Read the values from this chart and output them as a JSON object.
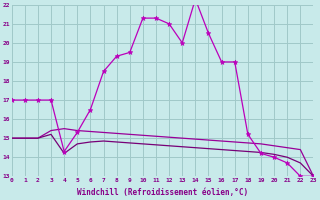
{
  "line1_x": [
    0,
    1,
    2,
    3,
    4,
    5,
    6,
    7,
    8,
    9,
    10,
    11,
    12,
    13,
    14,
    15,
    16,
    17,
    18,
    19,
    20,
    21,
    22,
    23
  ],
  "line1_y": [
    17.0,
    17.0,
    17.0,
    17.0,
    14.3,
    15.3,
    16.5,
    18.5,
    19.3,
    19.5,
    21.3,
    21.3,
    21.0,
    20.0,
    22.3,
    20.5,
    19.0,
    19.0,
    15.2,
    14.2,
    14.0,
    13.7,
    13.0,
    13.0
  ],
  "line2_x": [
    0,
    1,
    2,
    3,
    4,
    5,
    6,
    7,
    8,
    9,
    10,
    11,
    12,
    13,
    14,
    15,
    16,
    17,
    18,
    19,
    20,
    21,
    22,
    23
  ],
  "line2_y": [
    15.0,
    15.0,
    15.0,
    15.4,
    15.5,
    15.4,
    15.35,
    15.3,
    15.25,
    15.2,
    15.15,
    15.1,
    15.05,
    15.0,
    14.95,
    14.9,
    14.85,
    14.8,
    14.75,
    14.7,
    14.6,
    14.5,
    14.4,
    13.0
  ],
  "line3_x": [
    0,
    1,
    2,
    3,
    4,
    5,
    6,
    7,
    8,
    9,
    10,
    11,
    12,
    13,
    14,
    15,
    16,
    17,
    18,
    19,
    20,
    21,
    22,
    23
  ],
  "line3_y": [
    15.0,
    15.0,
    15.0,
    15.2,
    14.2,
    14.7,
    14.8,
    14.85,
    14.8,
    14.75,
    14.7,
    14.65,
    14.6,
    14.55,
    14.5,
    14.45,
    14.4,
    14.35,
    14.3,
    14.25,
    14.15,
    14.0,
    13.7,
    13.0
  ],
  "line_color1": "#bb00bb",
  "line_color2": "#990099",
  "line_color3": "#770077",
  "bg_color": "#c8eaea",
  "grid_color": "#a0c8c8",
  "xlabel": "Windchill (Refroidissement éolien,°C)",
  "xlim": [
    0,
    23
  ],
  "ylim": [
    13,
    22
  ],
  "yticks": [
    13,
    14,
    15,
    16,
    17,
    18,
    19,
    20,
    21,
    22
  ],
  "xticks": [
    0,
    1,
    2,
    3,
    4,
    5,
    6,
    7,
    8,
    9,
    10,
    11,
    12,
    13,
    14,
    15,
    16,
    17,
    18,
    19,
    20,
    21,
    22,
    23
  ]
}
